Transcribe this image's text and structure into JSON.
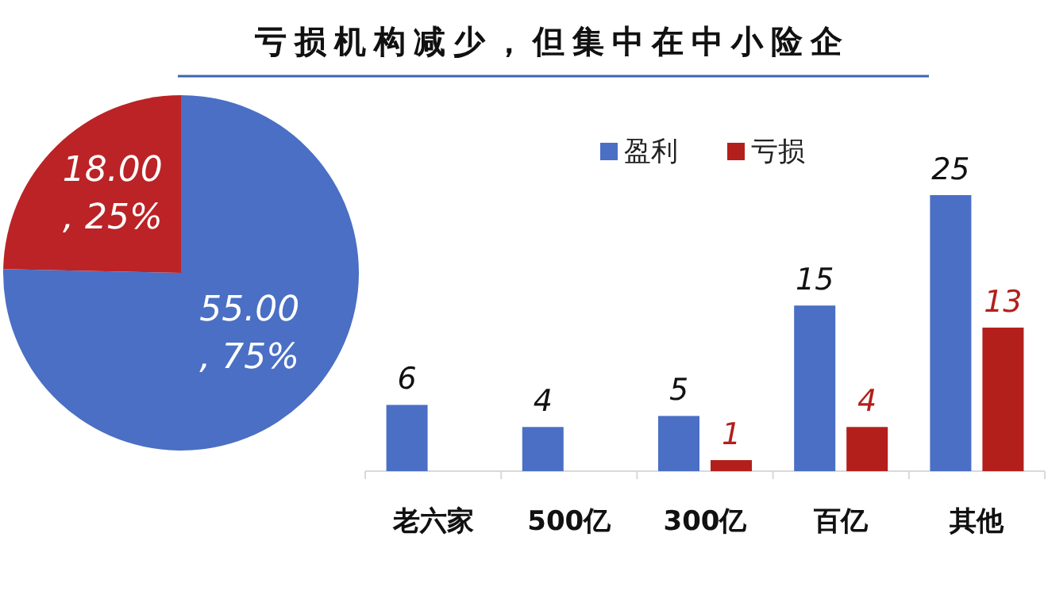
{
  "chart_data": [
    {
      "type": "pie",
      "title": "亏损机构减少，但集中在中小险企",
      "categories": [
        null,
        null
      ],
      "values": [
        55,
        18
      ],
      "colors": [
        "#4a6fc4",
        "#bb2326"
      ],
      "value_labels": [
        "55.00\n, 75%",
        "18.00\n, 25%"
      ]
    },
    {
      "type": "bar",
      "categories": [
        "老六家",
        "500亿",
        "300亿",
        "百亿",
        "其他"
      ],
      "series": [
        {
          "name": "盈利",
          "color": "#4a6fc4",
          "values": [
            6,
            4,
            5,
            15,
            25
          ]
        },
        {
          "name": "亏损",
          "color": "#b31f1b",
          "values": [
            null,
            null,
            1,
            4,
            13
          ]
        }
      ],
      "data_labels": true,
      "legend": "top"
    }
  ]
}
